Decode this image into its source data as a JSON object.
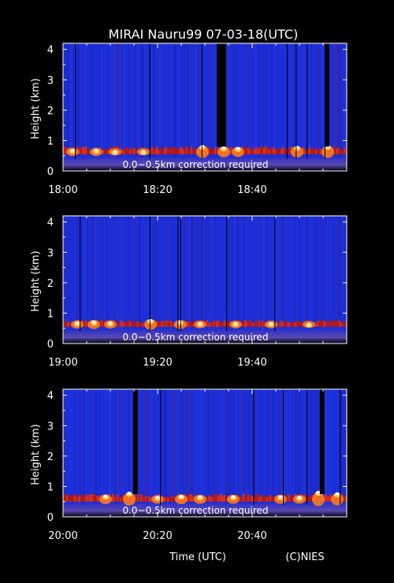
{
  "title": "MIRAI Nauru99 07-03-18(UTC)",
  "xlabel": "Time (UTC)",
  "credit": "(C)NIES",
  "colors": {
    "background": "#000000",
    "text": "#ffffff",
    "field": "#1c2fd8",
    "surface_band": "#3a3ab8",
    "cloud_red": "#c01808",
    "cloud_hot": "#ff8020",
    "cloud_peak": "#ffffff",
    "gap": "#000000"
  },
  "chart_data": [
    {
      "type": "heatmap",
      "title": "MIRAI Nauru99 07-03-18(UTC)",
      "xlabel": "",
      "ylabel": "Height (km)",
      "annotation": "0.0−0.5km correction required",
      "x_range_min": [
        0,
        60
      ],
      "ylim": [
        0,
        4.2
      ],
      "yticks": [
        0,
        1,
        2,
        3,
        4
      ],
      "xticks": [
        {
          "value": 0,
          "label": "18:00"
        },
        {
          "value": 20,
          "label": "18:20"
        },
        {
          "value": 40,
          "label": "18:40"
        }
      ],
      "cloud_base_km": 0.55,
      "cloud_top_km": 0.75,
      "cloud_peaks": [
        {
          "t": 2,
          "h": 0.72
        },
        {
          "t": 7,
          "h": 0.72
        },
        {
          "t": 11,
          "h": 0.68
        },
        {
          "t": 17,
          "h": 0.68
        },
        {
          "t": 29.5,
          "h": 0.85
        },
        {
          "t": 34,
          "h": 0.8
        },
        {
          "t": 37,
          "h": 0.78
        },
        {
          "t": 49.5,
          "h": 0.82
        },
        {
          "t": 56,
          "h": 0.85
        }
      ],
      "data_gaps_min": [
        [
          32.5,
          34.5
        ],
        [
          55.5,
          56.3
        ]
      ],
      "dark_lines_min": [
        2.5,
        18.3,
        29.3,
        47.3,
        49.2,
        51.5,
        55.3
      ]
    },
    {
      "type": "heatmap",
      "title": "",
      "xlabel": "",
      "ylabel": "Height (km)",
      "annotation": "0.0−0.5km correction required",
      "x_range_min": [
        0,
        60
      ],
      "ylim": [
        0,
        4.2
      ],
      "yticks": [
        0,
        1,
        2,
        3,
        4
      ],
      "xticks": [
        {
          "value": 0,
          "label": "19:00"
        },
        {
          "value": 20,
          "label": "19:20"
        },
        {
          "value": 40,
          "label": "19:40"
        }
      ],
      "cloud_base_km": 0.55,
      "cloud_top_km": 0.72,
      "cloud_peaks": [
        {
          "t": 3,
          "h": 0.72
        },
        {
          "t": 6.5,
          "h": 0.75
        },
        {
          "t": 10,
          "h": 0.72
        },
        {
          "t": 18.5,
          "h": 0.8
        },
        {
          "t": 24.8,
          "h": 0.75
        },
        {
          "t": 29,
          "h": 0.7
        },
        {
          "t": 36.5,
          "h": 0.7
        },
        {
          "t": 44,
          "h": 0.7
        },
        {
          "t": 52,
          "h": 0.68
        }
      ],
      "data_gaps_min": [],
      "dark_lines_min": [
        3.5,
        18.3,
        24.2,
        24.8,
        34.5,
        44.7
      ]
    },
    {
      "type": "heatmap",
      "title": "",
      "xlabel": "Time (UTC)",
      "ylabel": "Height (km)",
      "annotation": "0.0−0.5km correction required",
      "x_range_min": [
        0,
        60
      ],
      "ylim": [
        0,
        4.2
      ],
      "yticks": [
        0,
        1,
        2,
        3,
        4
      ],
      "xticks": [
        {
          "value": 0,
          "label": "20:00"
        },
        {
          "value": 20,
          "label": "20:20"
        },
        {
          "value": 40,
          "label": "20:40"
        }
      ],
      "cloud_base_km": 0.5,
      "cloud_top_km": 0.7,
      "cloud_peaks": [
        {
          "t": 9,
          "h": 0.72
        },
        {
          "t": 14,
          "h": 0.82
        },
        {
          "t": 20,
          "h": 0.68
        },
        {
          "t": 25,
          "h": 0.72
        },
        {
          "t": 29,
          "h": 0.7
        },
        {
          "t": 36,
          "h": 0.7
        },
        {
          "t": 46,
          "h": 0.7
        },
        {
          "t": 50,
          "h": 0.68
        },
        {
          "t": 54,
          "h": 0.85
        },
        {
          "t": 58,
          "h": 0.8
        }
      ],
      "data_gaps_min": [
        [
          14.8,
          15.8
        ],
        [
          54.3,
          55.3
        ]
      ],
      "dark_lines_min": [
        20.5,
        40.2,
        46.5,
        51.5,
        58.5
      ]
    }
  ]
}
